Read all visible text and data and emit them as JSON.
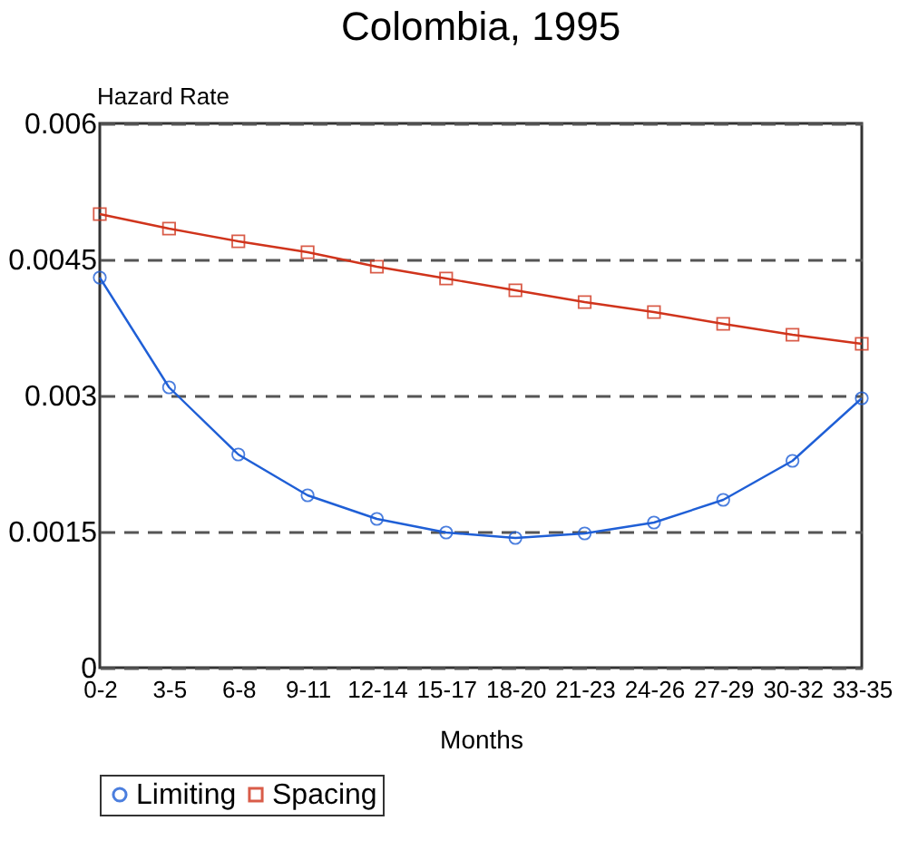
{
  "chart_data": {
    "type": "line",
    "title": "Colombia, 1995",
    "xlabel": "Months",
    "ylabel": "Hazard Rate",
    "categories": [
      "0-2",
      "3-5",
      "6-8",
      "9-11",
      "12-14",
      "15-17",
      "18-20",
      "21-23",
      "24-26",
      "27-29",
      "30-32",
      "33-35"
    ],
    "series": [
      {
        "name": "Limiting",
        "color": "#1f5fd6",
        "marker": "circle",
        "values": [
          0.0043,
          0.00309,
          0.00235,
          0.0019,
          0.00164,
          0.00149,
          0.00143,
          0.00148,
          0.0016,
          0.00185,
          0.00228,
          0.00297
        ]
      },
      {
        "name": "Spacing",
        "color": "#d0341c",
        "marker": "square",
        "values": [
          0.005,
          0.00484,
          0.0047,
          0.00458,
          0.00442,
          0.00429,
          0.00416,
          0.00403,
          0.00392,
          0.00379,
          0.00367,
          0.00357
        ]
      }
    ],
    "ylim": [
      0,
      0.006
    ],
    "yticks": [
      0,
      0.0015,
      0.003,
      0.0045,
      0.006
    ],
    "grid": "y",
    "line_style": "solid",
    "legend": "bottom"
  }
}
